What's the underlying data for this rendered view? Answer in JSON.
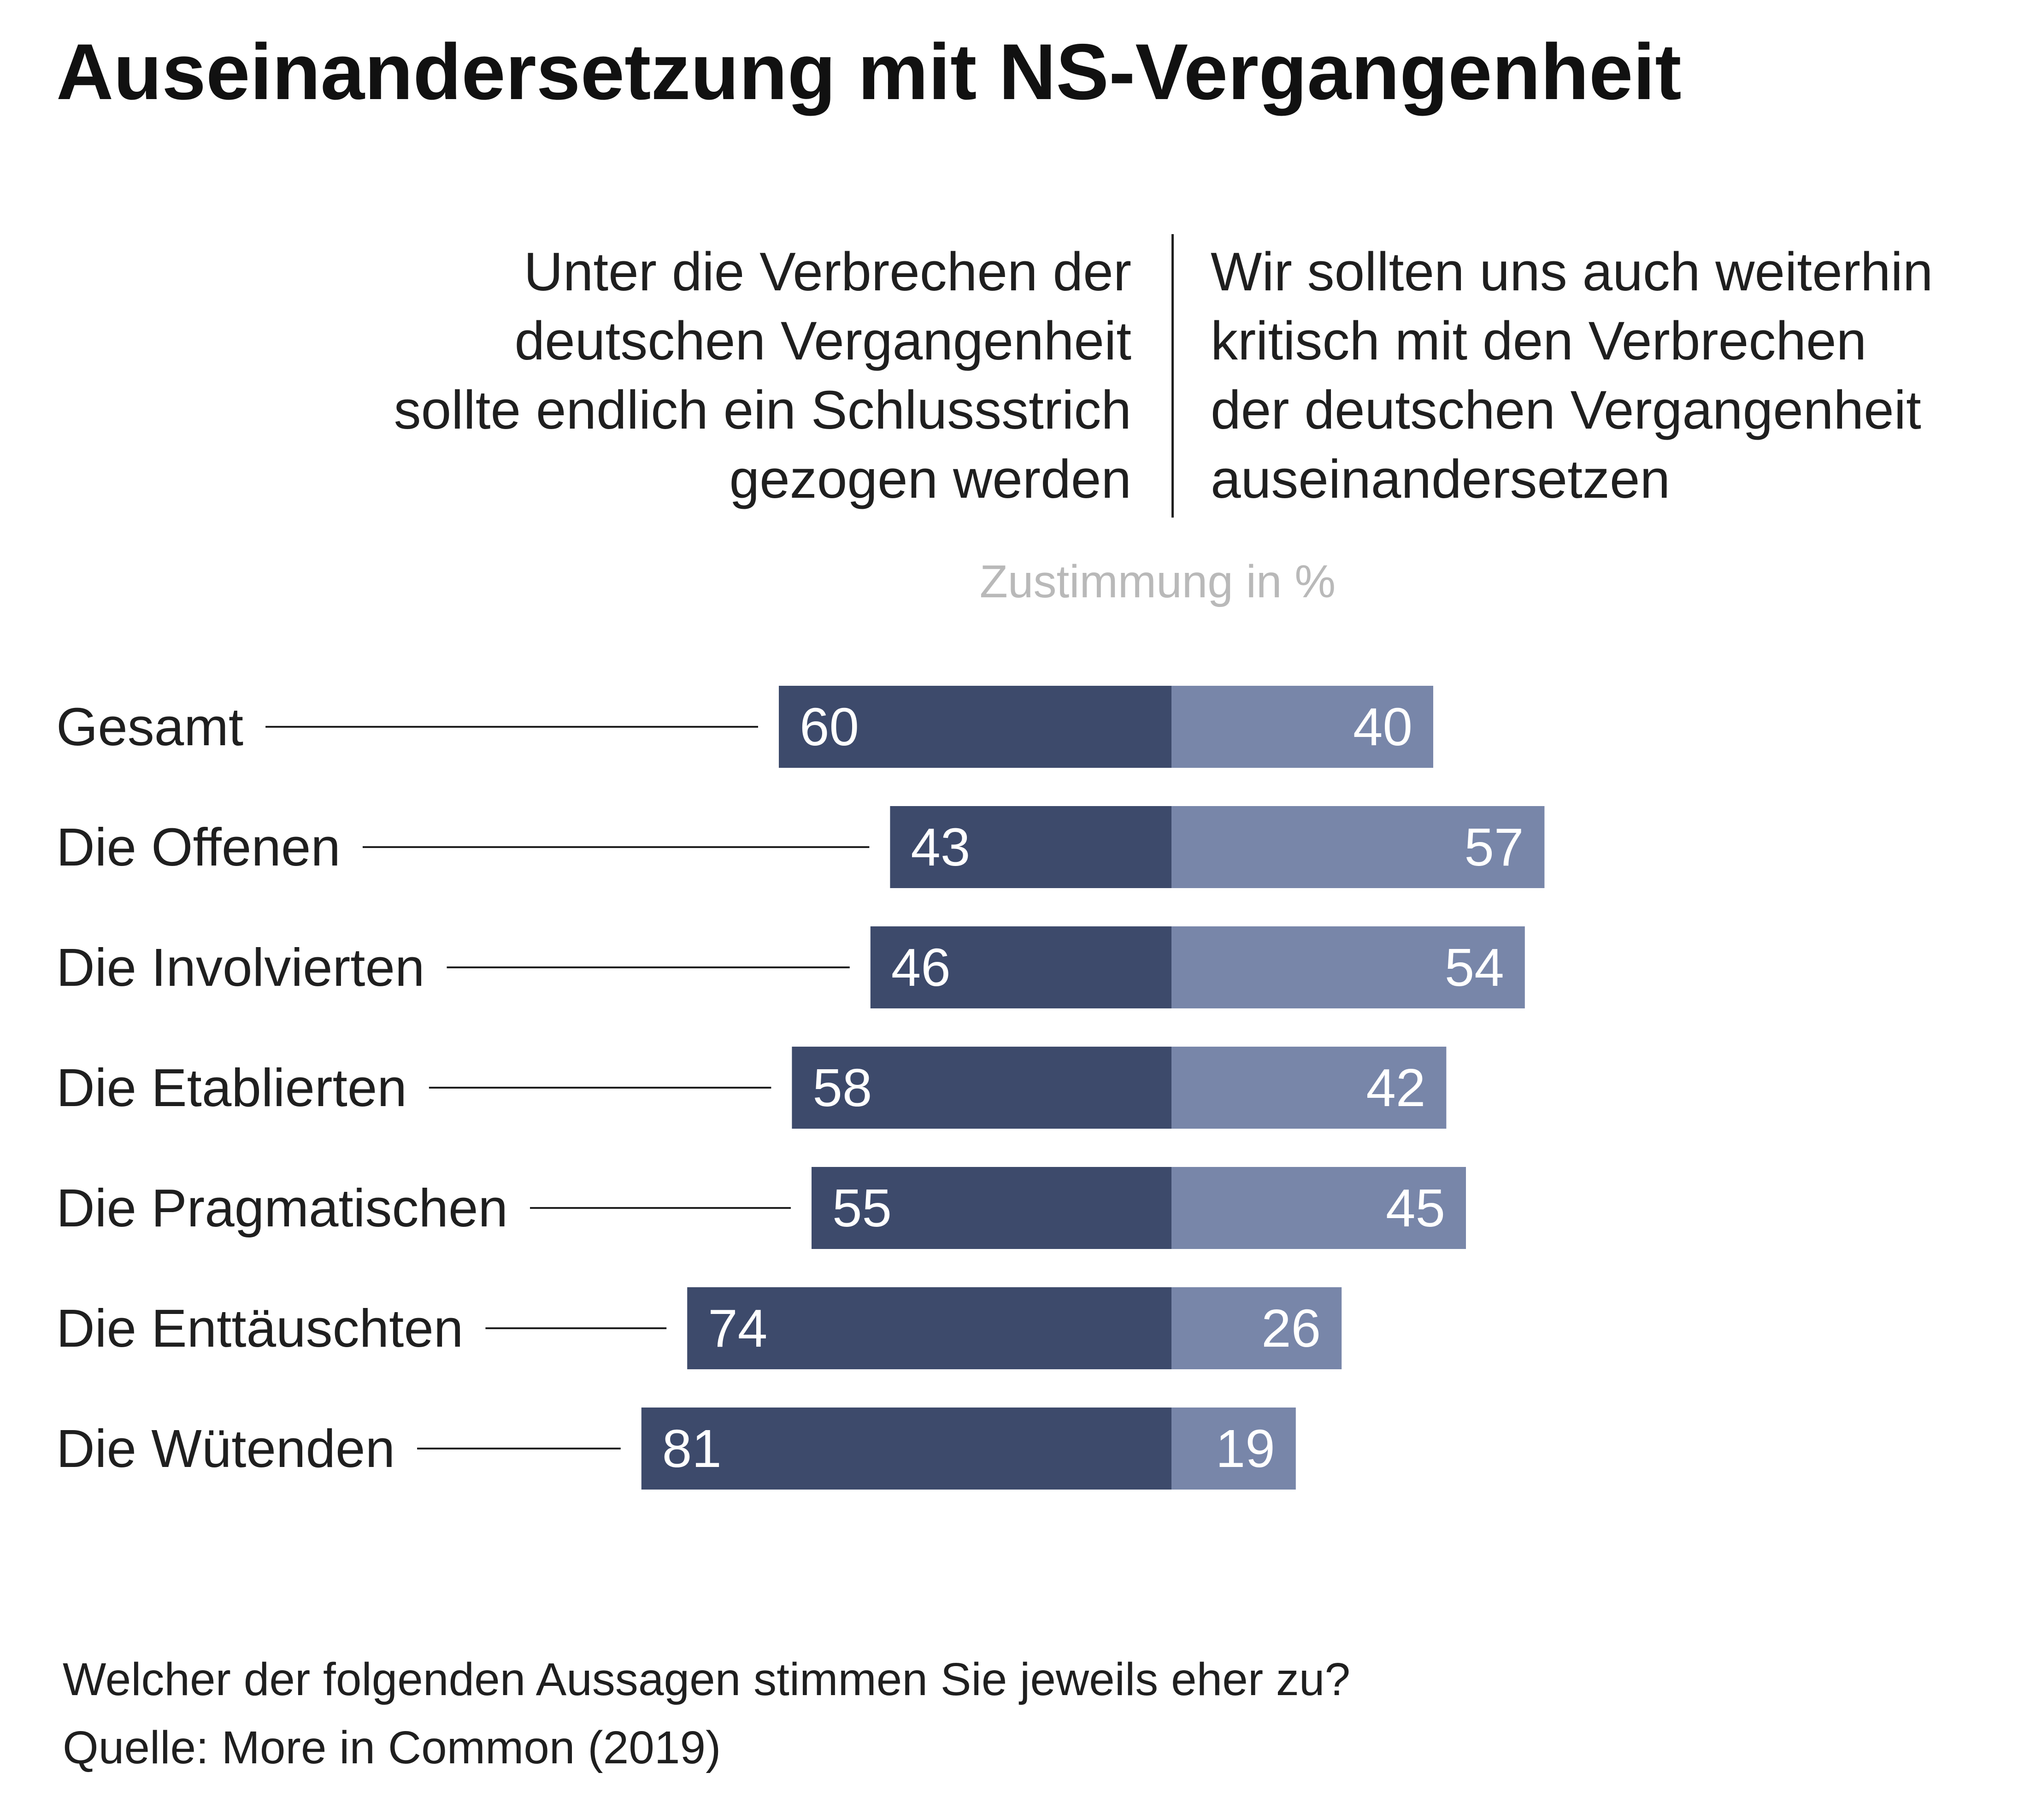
{
  "title": "Auseinandersetzung mit NS-Vergangenheit",
  "statement_left": "Unter die Verbrechen der\ndeutschen Vergangenheit\nsollte endlich ein Schlussstrich\ngezogen werden",
  "statement_right": "Wir sollten uns auch weiterhin\nkritisch mit den Verbrechen\nder deutschen Vergangenheit\nauseinandersetzen",
  "unit_label": "Zustimmung in %",
  "footer": {
    "question": "Welcher der folgenden Aussagen stimmen Sie jeweils eher zu?",
    "source": "Quelle: More in Common (2019)"
  },
  "colors": {
    "left_bar": "#3d4a6b",
    "right_bar": "#7886a9",
    "text": "#1f1f1f",
    "muted": "#b9b9b9"
  },
  "chart_data": {
    "type": "bar",
    "orientation": "horizontal-diverging",
    "categories": [
      "Gesamt",
      "Die Offenen",
      "Die Involvierten",
      "Die Etablierten",
      "Die Pragmatischen",
      "Die Enttäuschten",
      "Die Wütenden"
    ],
    "series": [
      {
        "name": "Unter die Verbrechen der deutschen Vergangenheit sollte endlich ein Schlussstrich gezogen werden",
        "values": [
          60,
          43,
          46,
          58,
          55,
          74,
          81
        ]
      },
      {
        "name": "Wir sollten uns auch weiterhin kritisch mit den Verbrechen der deutschen Vergangenheit auseinandersetzen",
        "values": [
          40,
          57,
          54,
          42,
          45,
          26,
          19
        ]
      }
    ],
    "unit": "Zustimmung in %",
    "grid": false,
    "legend": "top"
  }
}
